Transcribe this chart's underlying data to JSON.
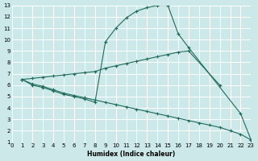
{
  "xlabel": "Humidex (Indice chaleur)",
  "bg_color": "#cce8e8",
  "line_color": "#1f6b5a",
  "grid_color": "#ffffff",
  "xlim": [
    0,
    23
  ],
  "ylim": [
    1,
    13
  ],
  "xticks": [
    0,
    1,
    2,
    3,
    4,
    5,
    6,
    7,
    8,
    9,
    10,
    11,
    12,
    13,
    14,
    15,
    16,
    17,
    18,
    19,
    20,
    21,
    22,
    23
  ],
  "yticks": [
    1,
    2,
    3,
    4,
    5,
    6,
    7,
    8,
    9,
    10,
    11,
    12,
    13
  ],
  "curve1_x": [
    1,
    2,
    3,
    4,
    5,
    6,
    7,
    8,
    9,
    10,
    11,
    12,
    13,
    14,
    15,
    16,
    17,
    22,
    23
  ],
  "curve1_y": [
    6.5,
    6.0,
    5.8,
    5.5,
    5.2,
    5.0,
    4.8,
    4.5,
    9.8,
    11.0,
    11.9,
    12.5,
    12.8,
    13.0,
    13.0,
    10.5,
    9.3,
    3.5,
    1.2
  ],
  "curve2_x": [
    1,
    2,
    3,
    4,
    5,
    6,
    7,
    8,
    9,
    10,
    11,
    12,
    13,
    14,
    15,
    16,
    17,
    20
  ],
  "curve2_y": [
    6.5,
    6.6,
    6.7,
    6.8,
    6.9,
    7.0,
    7.1,
    7.2,
    7.5,
    7.7,
    7.9,
    8.1,
    8.3,
    8.5,
    8.7,
    8.9,
    9.0,
    6.0
  ],
  "curve3_x": [
    1,
    2,
    3,
    4,
    5,
    6,
    7,
    8,
    9,
    10,
    11,
    12,
    13,
    14,
    15,
    16,
    17,
    18,
    19,
    20,
    21,
    22,
    23
  ],
  "curve3_y": [
    6.5,
    6.1,
    5.9,
    5.6,
    5.3,
    5.1,
    4.9,
    4.7,
    4.5,
    4.3,
    4.1,
    3.9,
    3.7,
    3.5,
    3.3,
    3.1,
    2.9,
    2.7,
    2.5,
    2.3,
    2.0,
    1.7,
    1.2
  ]
}
